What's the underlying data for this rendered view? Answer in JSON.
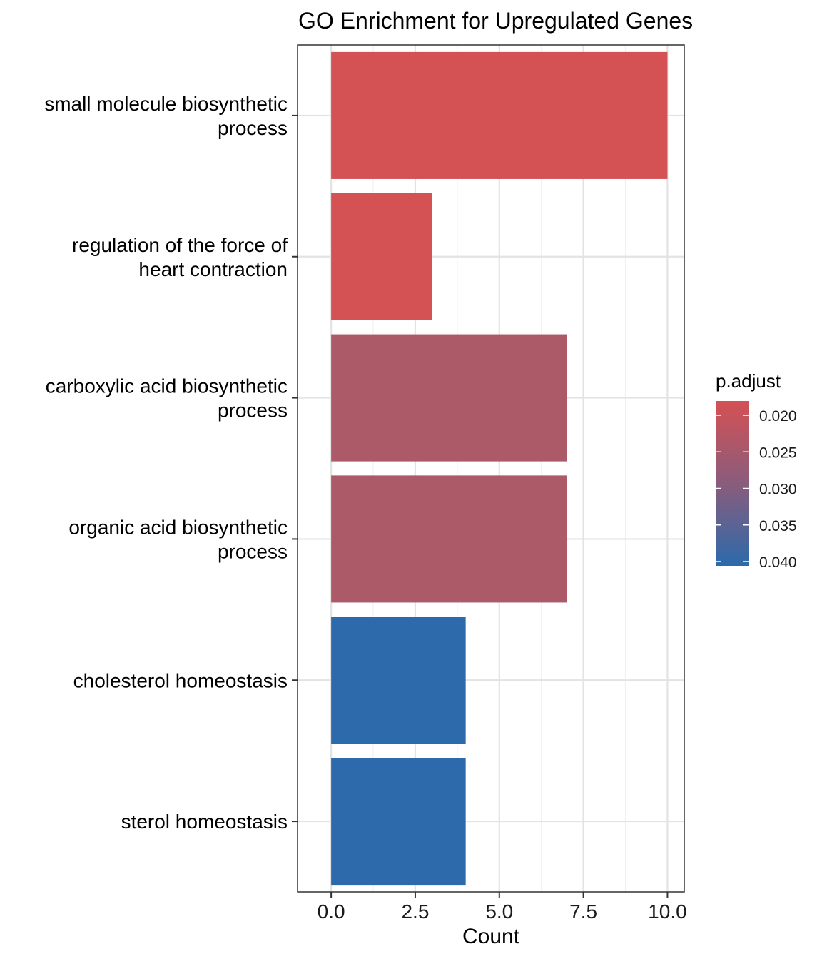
{
  "chart_data": {
    "type": "bar",
    "orientation": "horizontal",
    "title": "GO Enrichment for Upregulated Genes",
    "xlabel": "Count",
    "ylabel": "",
    "xlim": [
      -1.0,
      10.5
    ],
    "x_ticks": [
      0.0,
      2.5,
      5.0,
      7.5,
      10.0
    ],
    "x_tick_labels": [
      "0.0",
      "2.5",
      "5.0",
      "7.5",
      "10.0"
    ],
    "grid": true,
    "categories": [
      [
        "small molecule biosynthetic",
        "process"
      ],
      [
        "regulation of the force of",
        "heart contraction"
      ],
      [
        "carboxylic acid biosynthetic",
        "process"
      ],
      [
        "organic acid biosynthetic",
        "process"
      ],
      [
        "cholesterol homeostasis"
      ],
      [
        "sterol homeostasis"
      ]
    ],
    "values": [
      10,
      3,
      7,
      7,
      4,
      4
    ],
    "bar_colors": [
      "#d45154",
      "#d45154",
      "#ad5a68",
      "#ad5a68",
      "#2c6aab",
      "#2c6aab"
    ],
    "legend": {
      "title": "p.adjust",
      "position": "right",
      "labels": [
        "0.020",
        "0.025",
        "0.030",
        "0.035",
        "0.040"
      ],
      "values": [
        0.02,
        0.025,
        0.03,
        0.035,
        0.04
      ],
      "color_low": "#d45154",
      "color_high": "#2c6aab"
    }
  }
}
